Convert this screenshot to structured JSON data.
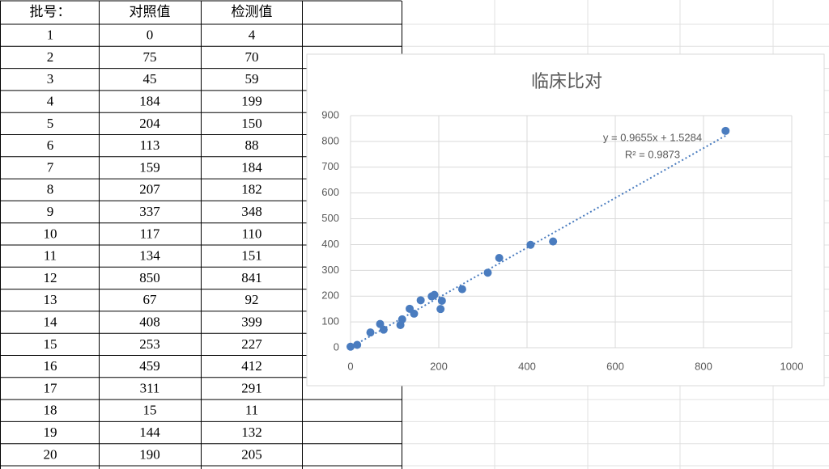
{
  "table": {
    "header": [
      "批号：",
      "对照值",
      "检测值"
    ],
    "rows": [
      [
        1,
        0,
        4
      ],
      [
        2,
        75,
        70
      ],
      [
        3,
        45,
        59
      ],
      [
        4,
        184,
        199
      ],
      [
        5,
        204,
        150
      ],
      [
        6,
        113,
        88
      ],
      [
        7,
        159,
        184
      ],
      [
        8,
        207,
        182
      ],
      [
        9,
        337,
        348
      ],
      [
        10,
        117,
        110
      ],
      [
        11,
        134,
        151
      ],
      [
        12,
        850,
        841
      ],
      [
        13,
        67,
        92
      ],
      [
        14,
        408,
        399
      ],
      [
        15,
        253,
        227
      ],
      [
        16,
        459,
        412
      ],
      [
        17,
        311,
        291
      ],
      [
        18,
        15,
        11
      ],
      [
        19,
        144,
        132
      ],
      [
        20,
        190,
        205
      ]
    ]
  },
  "chart_data": {
    "type": "scatter",
    "title": "临床比对",
    "x": [
      0,
      75,
      45,
      184,
      204,
      113,
      159,
      207,
      337,
      117,
      134,
      850,
      67,
      408,
      253,
      459,
      311,
      15,
      144,
      190
    ],
    "series": [
      {
        "color": "#4a7cbf",
        "values": [
          4,
          70,
          59,
          199,
          150,
          88,
          184,
          182,
          348,
          110,
          151,
          841,
          92,
          399,
          227,
          412,
          291,
          11,
          132,
          205
        ]
      }
    ],
    "xlim": [
      0,
      1000
    ],
    "xticks": [
      0,
      200,
      400,
      600,
      800,
      1000
    ],
    "ylim": [
      0,
      900
    ],
    "yticks": [
      0,
      100,
      200,
      300,
      400,
      500,
      600,
      700,
      800,
      900
    ],
    "grid": true,
    "trendline": {
      "equation": "y = 0.9655x + 1.5284",
      "r_squared": "R² = 0.9873",
      "slope": 0.9655,
      "intercept": 1.5284,
      "color": "#4a7cbf"
    }
  }
}
